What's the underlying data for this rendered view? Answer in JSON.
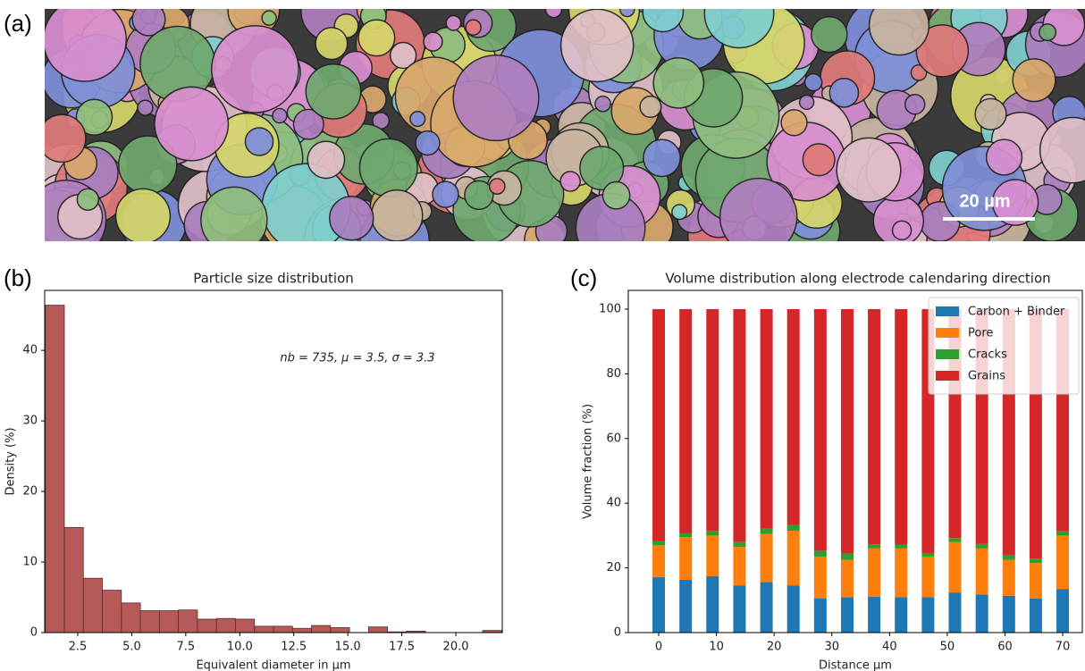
{
  "figure": {
    "panel_labels": [
      "(a)",
      "(b)",
      "(c)"
    ],
    "scale_bar": "20 µm"
  },
  "chart_data": [
    {
      "type": "histogram",
      "title": "Particle size distribution",
      "annotation": "nb = 735,  μ = 3.5,  σ = 3.3",
      "x_label": "Equivalent diameter in µm",
      "y_label": "Density (%)",
      "bins": [
        1.0,
        1.88,
        2.76,
        3.64,
        4.52,
        5.4,
        6.28,
        7.16,
        8.04,
        8.92,
        9.8,
        10.68,
        11.56,
        12.44,
        13.32,
        14.2,
        15.08,
        15.96,
        16.84,
        17.72,
        18.6,
        19.48,
        20.36,
        21.24,
        22.12
      ],
      "values": [
        46.4,
        14.9,
        7.7,
        6.0,
        4.2,
        3.1,
        3.1,
        3.2,
        1.9,
        2.0,
        1.9,
        0.9,
        0.9,
        0.6,
        1.0,
        0.7,
        0,
        0.8,
        0.1,
        0.2,
        0,
        0,
        0,
        0.3
      ],
      "color": "#b55a58",
      "edge_color": "#5a2a28",
      "xlim": [
        0.97,
        22.15
      ],
      "ylim": [
        0,
        48.5
      ],
      "xticks": [
        {
          "value": 2.5,
          "label": "2.5"
        },
        {
          "value": 5,
          "label": "5.0"
        },
        {
          "value": 7.5,
          "label": "7.5"
        },
        {
          "value": 10,
          "label": "10.0"
        },
        {
          "value": 12.5,
          "label": "12.5"
        },
        {
          "value": 15,
          "label": "15.0"
        },
        {
          "value": 17.5,
          "label": "17.5"
        },
        {
          "value": 20,
          "label": "20.0"
        }
      ],
      "yticks": [
        0,
        10,
        20,
        30,
        40
      ],
      "grid": false
    },
    {
      "type": "bar",
      "stacked": true,
      "title": "Volume distribution along electrode calendaring direction",
      "x_label": "Distance µm",
      "y_label": "Volume fraction (%)",
      "x": [
        0,
        4.67,
        9.33,
        14,
        18.67,
        23.33,
        28,
        32.67,
        37.33,
        42,
        46.67,
        51.33,
        56,
        60.67,
        65.33,
        70
      ],
      "series": [
        {
          "name": "Carbon + Binder",
          "color": "#1f77b4",
          "values": [
            17.2,
            16.3,
            17.4,
            14.6,
            15.6,
            14.6,
            10.6,
            10.9,
            11.1,
            10.9,
            11.0,
            12.4,
            11.8,
            11.4,
            10.5,
            13.5
          ]
        },
        {
          "name": "Pore",
          "color": "#ff7f0e",
          "values": [
            9.8,
            13.2,
            12.6,
            11.9,
            14.9,
            16.9,
            12.9,
            11.6,
            14.9,
            15.1,
            12.5,
            15.6,
            14.2,
            11.1,
            11.0,
            16.5
          ]
        },
        {
          "name": "Cracks",
          "color": "#2ca02c",
          "values": [
            1.2,
            1.3,
            1.4,
            1.5,
            1.6,
            1.8,
            1.8,
            1.9,
            1.3,
            1.2,
            1.1,
            1.2,
            1.4,
            1.3,
            1.4,
            1.3
          ]
        },
        {
          "name": "Grains",
          "color": "#d62728",
          "values": [
            71.8,
            69.2,
            68.6,
            72.0,
            67.9,
            66.7,
            74.7,
            75.6,
            72.7,
            72.8,
            75.4,
            70.8,
            72.6,
            76.2,
            77.1,
            68.7
          ]
        }
      ],
      "xlim": [
        -5.27,
        73.4
      ],
      "ylim": [
        0,
        105.8
      ],
      "xticks": [
        0,
        10,
        20,
        30,
        40,
        50,
        60,
        70
      ],
      "yticks": [
        0,
        20,
        40,
        60,
        80,
        100
      ],
      "legend": "upper right",
      "grid": false
    }
  ]
}
